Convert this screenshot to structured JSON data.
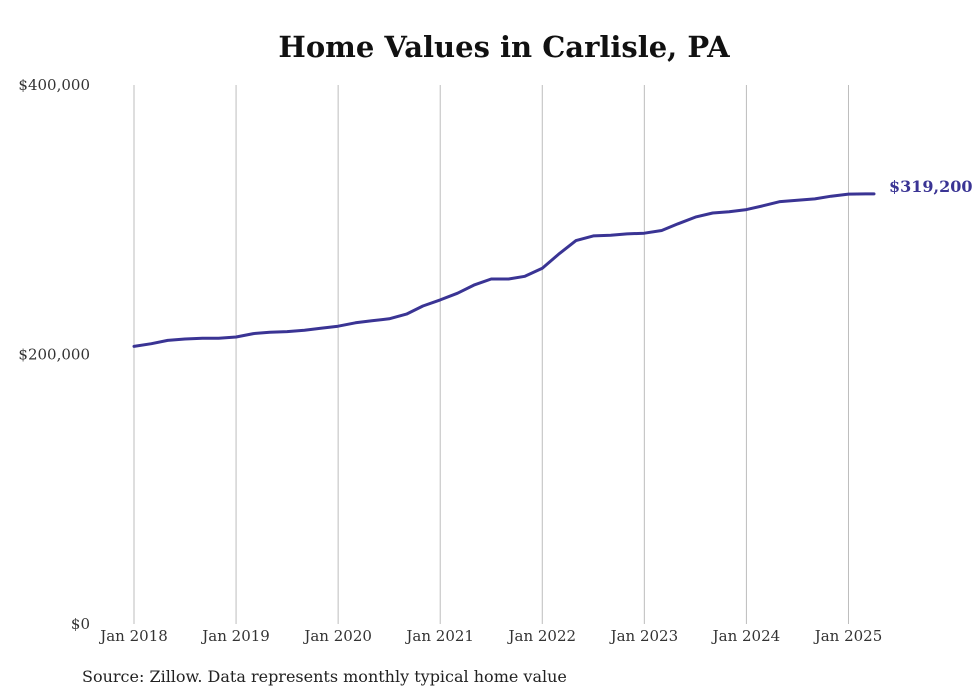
{
  "chart_data": {
    "type": "line",
    "title": "Home Values in Carlisle, PA",
    "xlabel": "",
    "ylabel": "",
    "ylim": [
      0,
      400000
    ],
    "y_ticks": [
      {
        "value": 0,
        "label": "$0"
      },
      {
        "value": 200000,
        "label": "$200,000"
      },
      {
        "value": 400000,
        "label": "$400,000"
      }
    ],
    "x_ticks": [
      {
        "value": 2018.0,
        "label": "Jan 2018"
      },
      {
        "value": 2019.0,
        "label": "Jan 2019"
      },
      {
        "value": 2020.0,
        "label": "Jan 2020"
      },
      {
        "value": 2021.0,
        "label": "Jan 2021"
      },
      {
        "value": 2022.0,
        "label": "Jan 2022"
      },
      {
        "value": 2023.0,
        "label": "Jan 2023"
      },
      {
        "value": 2024.0,
        "label": "Jan 2024"
      },
      {
        "value": 2025.0,
        "label": "Jan 2025"
      }
    ],
    "xlim": [
      2018.0,
      2025.25
    ],
    "grid": "vertical",
    "line_color": "#3a3494",
    "series": [
      {
        "x": [
          2018.0,
          2018.17,
          2018.33,
          2018.5,
          2018.67,
          2018.83,
          2019.0,
          2019.17,
          2019.33,
          2019.5,
          2019.67,
          2019.83,
          2020.0,
          2020.17,
          2020.33,
          2020.5,
          2020.67,
          2020.83,
          2021.0,
          2021.17,
          2021.33,
          2021.5,
          2021.67,
          2021.83,
          2022.0,
          2022.17,
          2022.33,
          2022.5,
          2022.67,
          2022.83,
          2023.0,
          2023.17,
          2023.33,
          2023.5,
          2023.67,
          2023.83,
          2024.0,
          2024.17,
          2024.33,
          2024.5,
          2024.67,
          2024.83,
          2025.0,
          2025.17,
          2025.25
        ],
        "values": [
          206000,
          208000,
          210500,
          211500,
          212000,
          212000,
          213000,
          215500,
          216500,
          217000,
          218000,
          219500,
          221000,
          223500,
          225000,
          226500,
          230000,
          236000,
          240500,
          245500,
          251500,
          256000,
          256000,
          258000,
          264000,
          275000,
          284500,
          288000,
          288500,
          289500,
          290000,
          292000,
          297000,
          302000,
          305000,
          306000,
          307500,
          310500,
          313500,
          314500,
          315500,
          317500,
          319000,
          319200,
          319200
        ]
      }
    ],
    "end_label": "$319,200",
    "source": "Source: Zillow. Data represents monthly typical home value"
  }
}
